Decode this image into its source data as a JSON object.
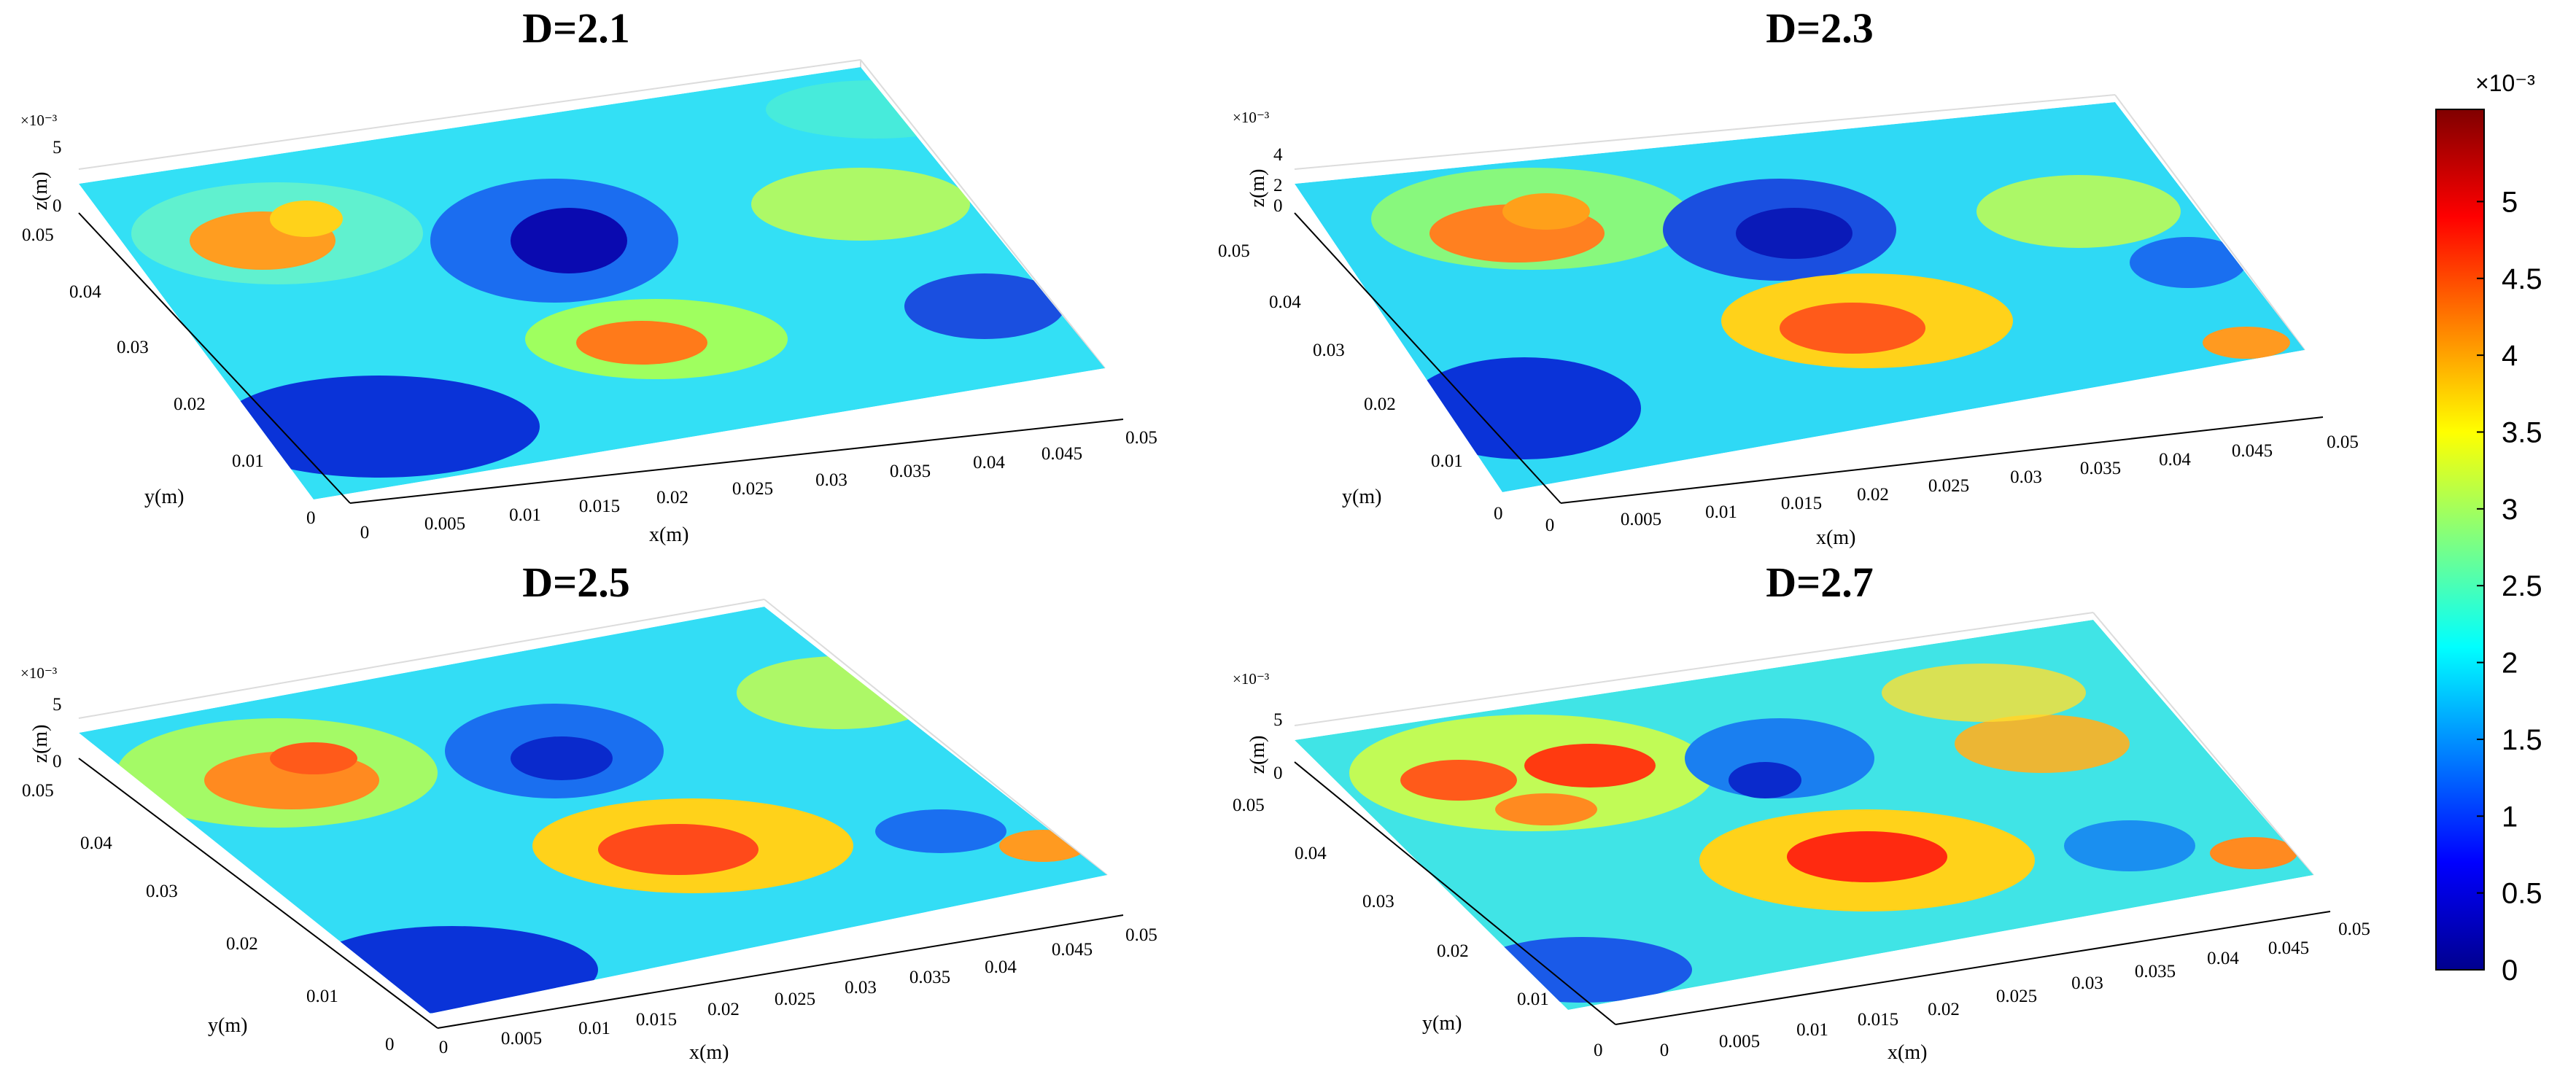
{
  "chart_data": [
    {
      "type": "surface",
      "title": "D=2.1",
      "xlabel": "x(m)",
      "ylabel": "y(m)",
      "zlabel": "z(m)",
      "z_exponent": "×10⁻³",
      "xticks": [
        "0",
        "0.005",
        "0.01",
        "0.015",
        "0.02",
        "0.025",
        "0.03",
        "0.035",
        "0.04",
        "0.045",
        "0.05"
      ],
      "yticks": [
        "0",
        "0.01",
        "0.02",
        "0.03",
        "0.04",
        "0.05"
      ],
      "zticks": [
        "0",
        "5"
      ],
      "xlim": [
        0,
        0.05
      ],
      "ylim": [
        0,
        0.05
      ],
      "zlim": [
        0,
        5
      ],
      "fractal_dimension": 2.1,
      "colormap": "jet",
      "grid": true
    },
    {
      "type": "surface",
      "title": "D=2.3",
      "xlabel": "x(m)",
      "ylabel": "y(m)",
      "zlabel": "z(m)",
      "z_exponent": "×10⁻³",
      "xticks": [
        "0",
        "0.005",
        "0.01",
        "0.015",
        "0.02",
        "0.025",
        "0.03",
        "0.035",
        "0.04",
        "0.045",
        "0.05"
      ],
      "yticks": [
        "0",
        "0.01",
        "0.02",
        "0.03",
        "0.04",
        "0.05"
      ],
      "zticks": [
        "0",
        "2",
        "4"
      ],
      "xlim": [
        0,
        0.05
      ],
      "ylim": [
        0,
        0.05
      ],
      "zlim": [
        0,
        4
      ],
      "fractal_dimension": 2.3,
      "colormap": "jet",
      "grid": true
    },
    {
      "type": "surface",
      "title": "D=2.5",
      "xlabel": "x(m)",
      "ylabel": "y(m)",
      "zlabel": "z(m)",
      "z_exponent": "×10⁻³",
      "xticks": [
        "0",
        "0.005",
        "0.01",
        "0.015",
        "0.02",
        "0.025",
        "0.03",
        "0.035",
        "0.04",
        "0.045",
        "0.05"
      ],
      "yticks": [
        "0",
        "0.01",
        "0.02",
        "0.03",
        "0.04",
        "0.05"
      ],
      "zticks": [
        "0",
        "5"
      ],
      "xlim": [
        0,
        0.05
      ],
      "ylim": [
        0,
        0.05
      ],
      "zlim": [
        0,
        5
      ],
      "fractal_dimension": 2.5,
      "colormap": "jet",
      "grid": true
    },
    {
      "type": "surface",
      "title": "D=2.7",
      "xlabel": "x(m)",
      "ylabel": "y(m)",
      "zlabel": "z(m)",
      "z_exponent": "×10⁻³",
      "xticks": [
        "0",
        "0.005",
        "0.01",
        "0.015",
        "0.02",
        "0.025",
        "0.03",
        "0.035",
        "0.04",
        "0.045",
        "0.05"
      ],
      "yticks": [
        "0",
        "0.01",
        "0.02",
        "0.03",
        "0.04",
        "0.05"
      ],
      "zticks": [
        "0",
        "5"
      ],
      "xlim": [
        0,
        0.05
      ],
      "ylim": [
        0,
        0.05
      ],
      "zlim": [
        0,
        5
      ],
      "fractal_dimension": 2.7,
      "colormap": "jet",
      "grid": true
    }
  ],
  "colorbar": {
    "exponent": "×10⁻³",
    "ticks": [
      "0",
      "0.5",
      "1",
      "1.5",
      "2",
      "2.5",
      "3",
      "3.5",
      "4",
      "4.5",
      "5"
    ],
    "range": [
      0,
      5.6
    ],
    "colormap": "jet"
  }
}
